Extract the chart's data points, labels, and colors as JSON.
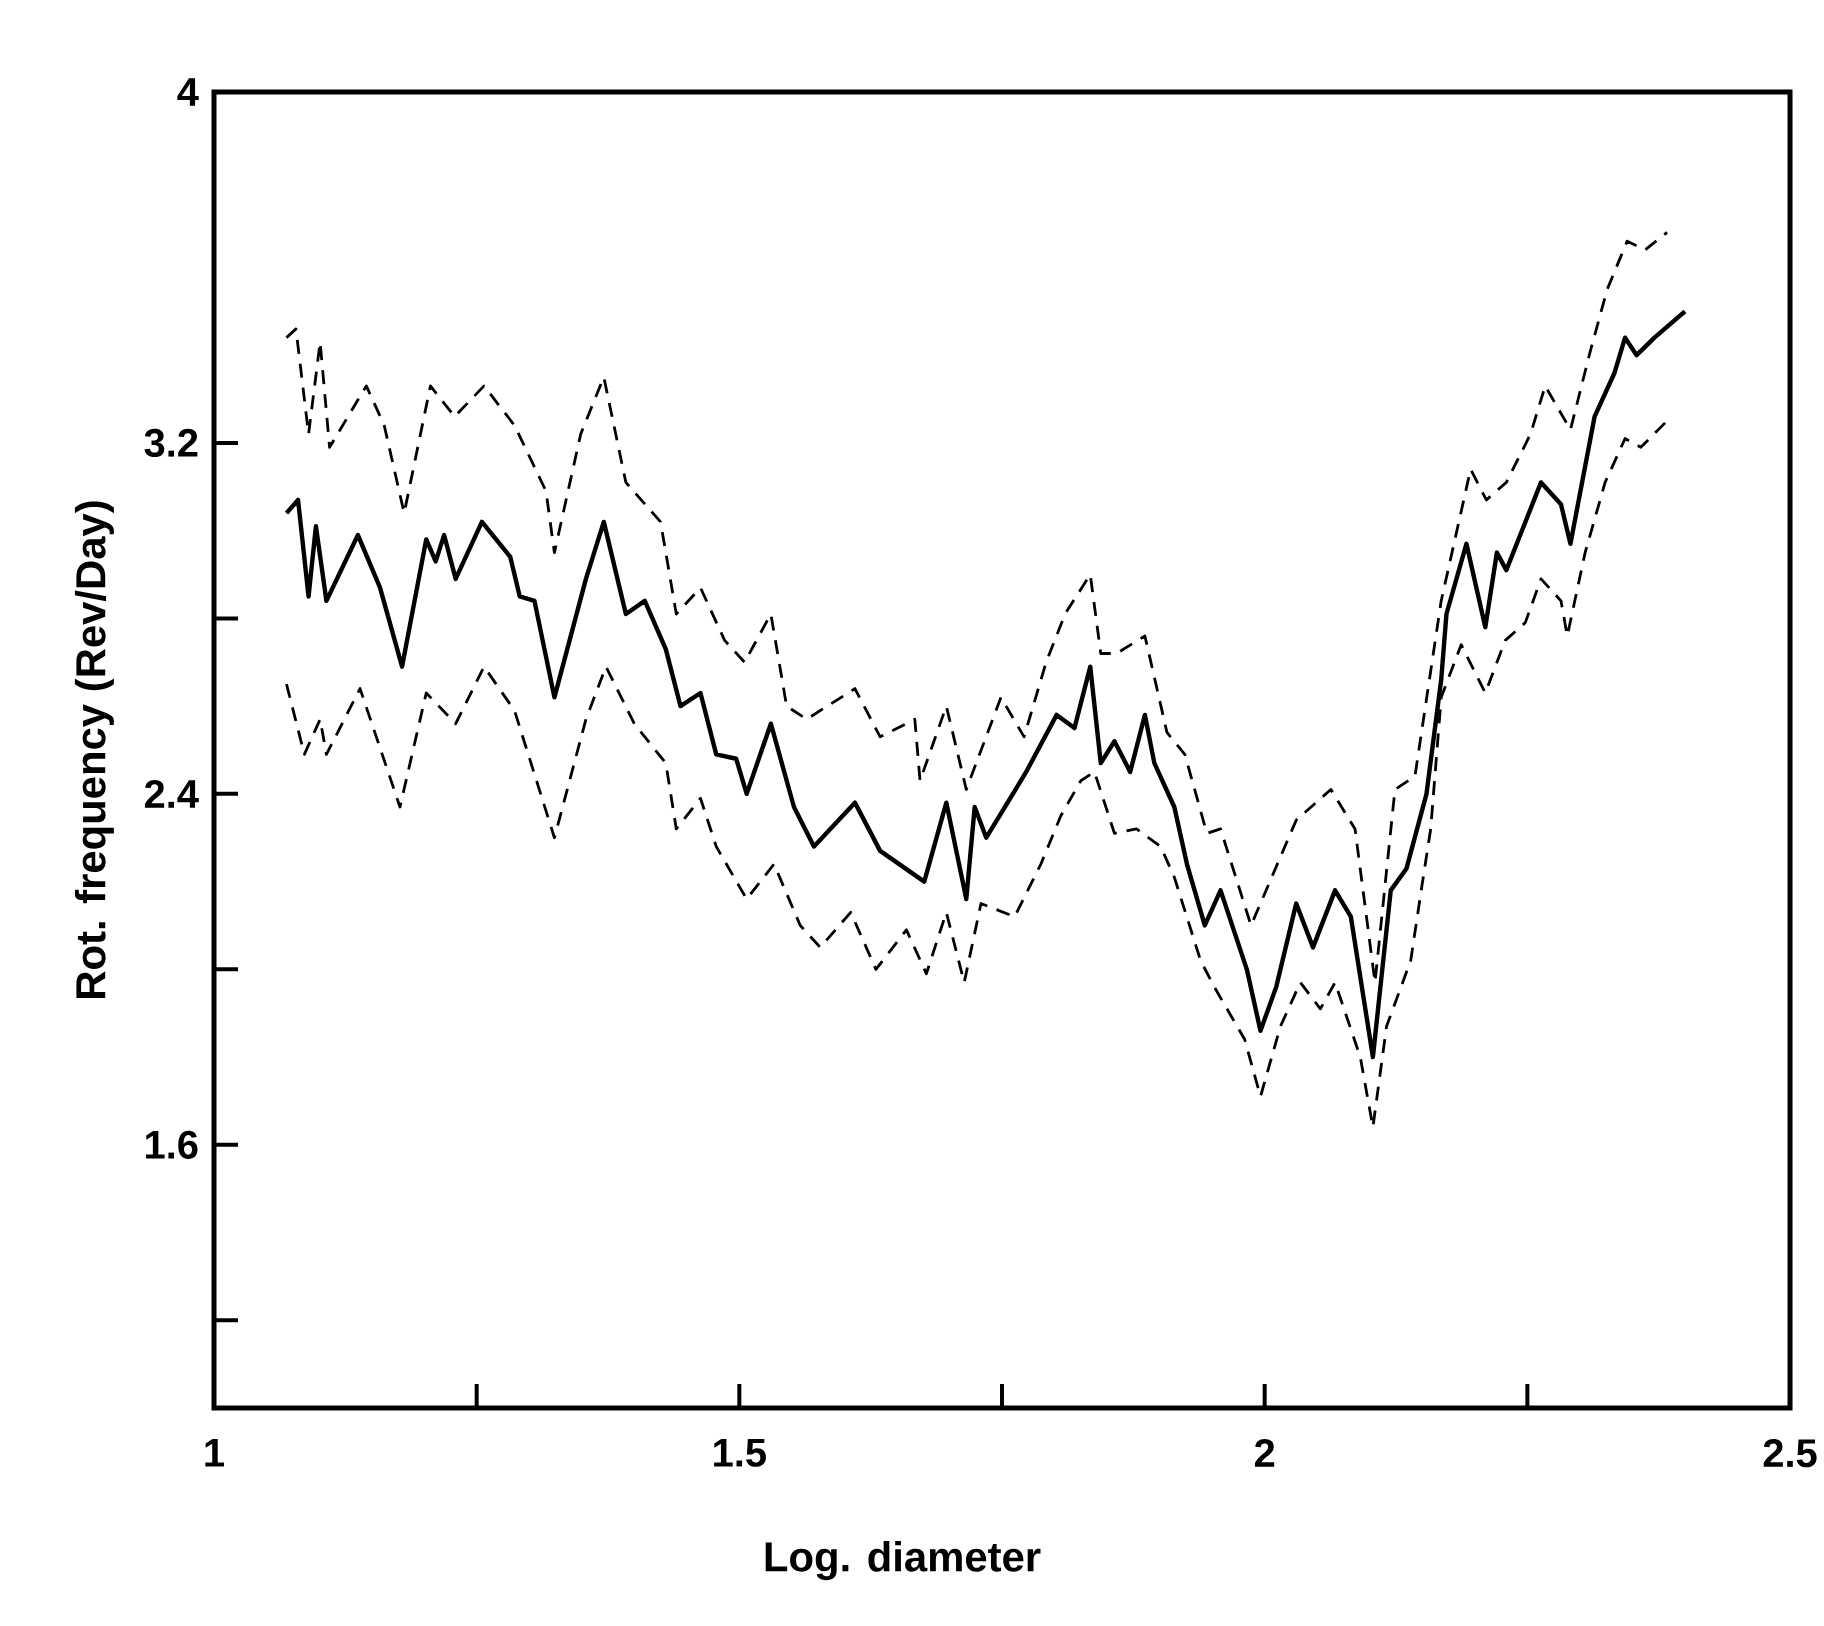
{
  "chart_data": {
    "type": "line",
    "xlabel": "Log. diameter",
    "ylabel": "Rot. frequency (Rev/Day)",
    "xlim": [
      1,
      2.5
    ],
    "ylim": [
      1.0,
      4.0
    ],
    "xticks": [
      1,
      {
        "value": 1.25,
        "label": null
      },
      1.5,
      {
        "value": 1.75,
        "label": null
      },
      2,
      {
        "value": 2.25,
        "label": null
      },
      2.5
    ],
    "yticks": [
      {
        "value": 1.2,
        "label": null
      },
      1.6,
      {
        "value": 2.0,
        "label": null
      },
      2.4,
      {
        "value": 2.8,
        "label": null
      },
      3.2,
      4
    ],
    "marker": "none",
    "series": [
      {
        "color": "#000000",
        "line_style": "solid",
        "x": [
          1.069,
          1.08,
          1.09,
          1.097,
          1.107,
          1.137,
          1.158,
          1.179,
          1.202,
          1.211,
          1.219,
          1.23,
          1.255,
          1.282,
          1.291,
          1.305,
          1.324,
          1.354,
          1.371,
          1.392,
          1.41,
          1.43,
          1.444,
          1.463,
          1.478,
          1.497,
          1.507,
          1.53,
          1.552,
          1.571,
          1.61,
          1.634,
          1.676,
          1.697,
          1.716,
          1.724,
          1.735,
          1.773,
          1.802,
          1.819,
          1.834,
          1.844,
          1.857,
          1.872,
          1.886,
          1.895,
          1.914,
          1.926,
          1.943,
          1.958,
          1.983,
          1.996,
          2.011,
          2.03,
          2.046,
          2.067,
          2.082,
          2.103,
          2.12,
          2.135,
          2.154,
          2.168,
          2.173,
          2.192,
          2.21,
          2.221,
          2.23,
          2.263,
          2.282,
          2.291,
          2.314,
          2.333,
          2.343,
          2.354,
          2.371,
          2.4
        ],
        "values": [
          3.04,
          3.07,
          2.85,
          3.01,
          2.84,
          2.99,
          2.87,
          2.69,
          2.98,
          2.93,
          2.99,
          2.89,
          3.02,
          2.94,
          2.85,
          2.84,
          2.62,
          2.89,
          3.02,
          2.81,
          2.84,
          2.73,
          2.6,
          2.63,
          2.49,
          2.48,
          2.4,
          2.56,
          2.37,
          2.28,
          2.38,
          2.27,
          2.2,
          2.38,
          2.16,
          2.37,
          2.3,
          2.45,
          2.58,
          2.55,
          2.69,
          2.47,
          2.52,
          2.45,
          2.58,
          2.47,
          2.37,
          2.24,
          2.1,
          2.18,
          2.0,
          1.86,
          1.96,
          2.15,
          2.05,
          2.18,
          2.12,
          1.8,
          2.18,
          2.23,
          2.4,
          2.66,
          2.81,
          2.97,
          2.78,
          2.95,
          2.91,
          3.11,
          3.06,
          2.97,
          3.26,
          3.36,
          3.44,
          3.4,
          3.44,
          3.5
        ]
      },
      {
        "color": "#000000",
        "line_style": "dashed",
        "x": [
          1.069,
          1.078,
          1.09,
          1.101,
          1.11,
          1.145,
          1.162,
          1.181,
          1.206,
          1.229,
          1.257,
          1.286,
          1.316,
          1.324,
          1.349,
          1.371,
          1.392,
          1.425,
          1.44,
          1.463,
          1.486,
          1.505,
          1.53,
          1.545,
          1.564,
          1.61,
          1.634,
          1.667,
          1.672,
          1.697,
          1.716,
          1.749,
          1.771,
          1.792,
          1.81,
          1.834,
          1.844,
          1.859,
          1.886,
          1.907,
          1.924,
          1.945,
          1.958,
          1.987,
          2.03,
          2.063,
          2.086,
          2.105,
          2.124,
          2.143,
          2.168,
          2.196,
          2.211,
          2.23,
          2.253,
          2.267,
          2.291,
          2.31,
          2.326,
          2.345,
          2.362,
          2.383
        ],
        "values": [
          3.44,
          3.46,
          3.22,
          3.43,
          3.19,
          3.33,
          3.24,
          3.04,
          3.33,
          3.26,
          3.33,
          3.24,
          3.09,
          2.95,
          3.22,
          3.35,
          3.11,
          3.02,
          2.81,
          2.87,
          2.75,
          2.7,
          2.81,
          2.6,
          2.57,
          2.64,
          2.53,
          2.57,
          2.43,
          2.6,
          2.41,
          2.62,
          2.53,
          2.7,
          2.81,
          2.9,
          2.72,
          2.72,
          2.76,
          2.54,
          2.49,
          2.31,
          2.32,
          2.1,
          2.34,
          2.41,
          2.32,
          1.97,
          2.41,
          2.44,
          2.84,
          3.14,
          3.07,
          3.11,
          3.22,
          3.33,
          3.23,
          3.41,
          3.55,
          3.66,
          3.64,
          3.68
        ]
      },
      {
        "color": "#000000",
        "line_style": "dashed",
        "x": [
          1.069,
          1.086,
          1.101,
          1.107,
          1.139,
          1.177,
          1.202,
          1.23,
          1.257,
          1.286,
          1.324,
          1.354,
          1.373,
          1.4,
          1.43,
          1.44,
          1.463,
          1.478,
          1.507,
          1.533,
          1.558,
          1.577,
          1.606,
          1.63,
          1.659,
          1.678,
          1.697,
          1.714,
          1.73,
          1.762,
          1.787,
          1.806,
          1.825,
          1.838,
          1.857,
          1.878,
          1.901,
          1.914,
          1.939,
          1.952,
          1.981,
          1.996,
          2.015,
          2.034,
          2.053,
          2.067,
          2.091,
          2.103,
          2.116,
          2.139,
          2.149,
          2.158,
          2.168,
          2.187,
          2.21,
          2.229,
          2.248,
          2.263,
          2.282,
          2.288,
          2.305,
          2.324,
          2.343,
          2.358,
          2.387
        ],
        "values": [
          2.65,
          2.49,
          2.57,
          2.49,
          2.64,
          2.37,
          2.63,
          2.56,
          2.69,
          2.59,
          2.3,
          2.57,
          2.69,
          2.56,
          2.47,
          2.32,
          2.39,
          2.28,
          2.16,
          2.24,
          2.1,
          2.05,
          2.13,
          2.0,
          2.09,
          1.99,
          2.13,
          1.97,
          2.15,
          2.12,
          2.24,
          2.35,
          2.43,
          2.45,
          2.31,
          2.32,
          2.28,
          2.21,
          2.02,
          1.96,
          1.84,
          1.71,
          1.87,
          1.97,
          1.91,
          1.97,
          1.8,
          1.64,
          1.87,
          2.02,
          2.18,
          2.32,
          2.62,
          2.74,
          2.63,
          2.75,
          2.79,
          2.89,
          2.84,
          2.76,
          2.95,
          3.11,
          3.21,
          3.19,
          3.26
        ]
      }
    ]
  }
}
